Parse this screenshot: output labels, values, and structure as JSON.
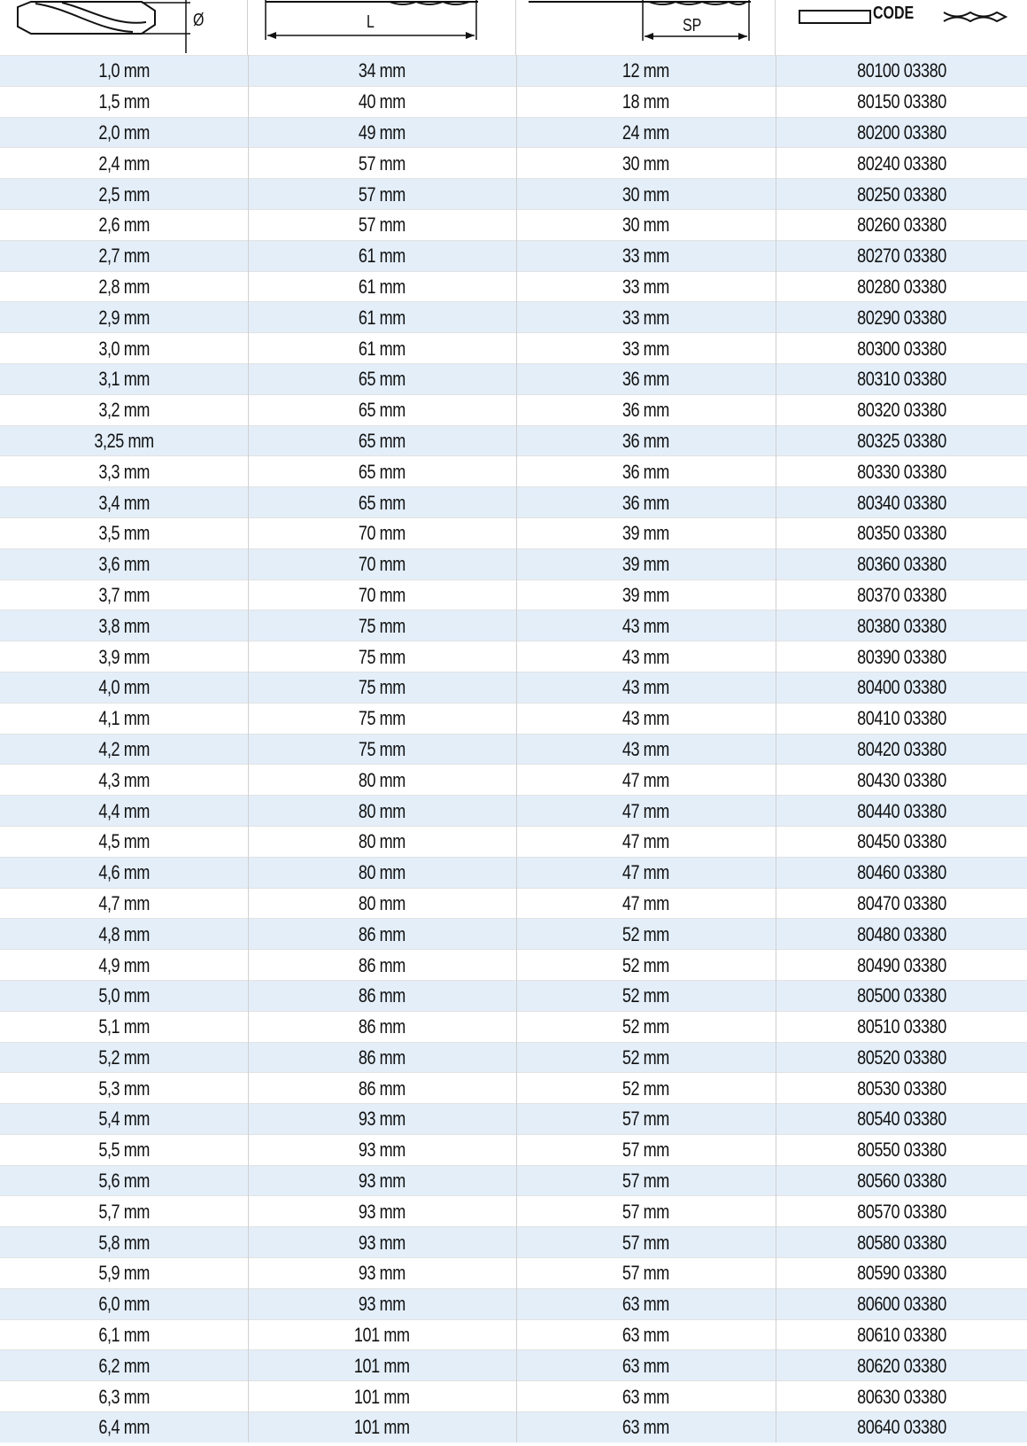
{
  "header": {
    "diameter_symbol": "Ø",
    "length_label": "L",
    "spiral_label": "SP",
    "code_label": "CODE"
  },
  "rows": [
    [
      "1,0 mm",
      "34 mm",
      "12 mm",
      "80100 03380"
    ],
    [
      "1,5 mm",
      "40 mm",
      "18 mm",
      "80150 03380"
    ],
    [
      "2,0 mm",
      "49 mm",
      "24 mm",
      "80200 03380"
    ],
    [
      "2,4 mm",
      "57 mm",
      "30 mm",
      "80240 03380"
    ],
    [
      "2,5 mm",
      "57 mm",
      "30 mm",
      "80250 03380"
    ],
    [
      "2,6 mm",
      "57 mm",
      "30 mm",
      "80260 03380"
    ],
    [
      "2,7 mm",
      "61 mm",
      "33 mm",
      "80270 03380"
    ],
    [
      "2,8 mm",
      "61 mm",
      "33 mm",
      "80280 03380"
    ],
    [
      "2,9 mm",
      "61 mm",
      "33 mm",
      "80290 03380"
    ],
    [
      "3,0 mm",
      "61 mm",
      "33 mm",
      "80300 03380"
    ],
    [
      "3,1 mm",
      "65 mm",
      "36 mm",
      "80310 03380"
    ],
    [
      "3,2 mm",
      "65 mm",
      "36 mm",
      "80320 03380"
    ],
    [
      "3,25 mm",
      "65 mm",
      "36 mm",
      "80325 03380"
    ],
    [
      "3,3 mm",
      "65 mm",
      "36 mm",
      "80330 03380"
    ],
    [
      "3,4 mm",
      "65 mm",
      "36 mm",
      "80340 03380"
    ],
    [
      "3,5 mm",
      "70 mm",
      "39 mm",
      "80350 03380"
    ],
    [
      "3,6 mm",
      "70 mm",
      "39 mm",
      "80360 03380"
    ],
    [
      "3,7 mm",
      "70 mm",
      "39 mm",
      "80370 03380"
    ],
    [
      "3,8 mm",
      "75 mm",
      "43 mm",
      "80380 03380"
    ],
    [
      "3,9 mm",
      "75 mm",
      "43 mm",
      "80390 03380"
    ],
    [
      "4,0 mm",
      "75 mm",
      "43 mm",
      "80400 03380"
    ],
    [
      "4,1 mm",
      "75 mm",
      "43 mm",
      "80410 03380"
    ],
    [
      "4,2 mm",
      "75 mm",
      "43 mm",
      "80420 03380"
    ],
    [
      "4,3 mm",
      "80 mm",
      "47 mm",
      "80430 03380"
    ],
    [
      "4,4 mm",
      "80 mm",
      "47 mm",
      "80440 03380"
    ],
    [
      "4,5 mm",
      "80 mm",
      "47 mm",
      "80450 03380"
    ],
    [
      "4,6 mm",
      "80 mm",
      "47 mm",
      "80460 03380"
    ],
    [
      "4,7 mm",
      "80 mm",
      "47 mm",
      "80470 03380"
    ],
    [
      "4,8 mm",
      "86 mm",
      "52 mm",
      "80480 03380"
    ],
    [
      "4,9 mm",
      "86 mm",
      "52 mm",
      "80490 03380"
    ],
    [
      "5,0 mm",
      "86 mm",
      "52 mm",
      "80500 03380"
    ],
    [
      "5,1 mm",
      "86 mm",
      "52 mm",
      "80510 03380"
    ],
    [
      "5,2 mm",
      "86 mm",
      "52 mm",
      "80520 03380"
    ],
    [
      "5,3 mm",
      "86 mm",
      "52 mm",
      "80530 03380"
    ],
    [
      "5,4 mm",
      "93 mm",
      "57 mm",
      "80540 03380"
    ],
    [
      "5,5 mm",
      "93 mm",
      "57 mm",
      "80550 03380"
    ],
    [
      "5,6 mm",
      "93 mm",
      "57 mm",
      "80560 03380"
    ],
    [
      "5,7 mm",
      "93 mm",
      "57 mm",
      "80570 03380"
    ],
    [
      "5,8 mm",
      "93 mm",
      "57 mm",
      "80580 03380"
    ],
    [
      "5,9 mm",
      "93 mm",
      "57 mm",
      "80590 03380"
    ],
    [
      "6,0 mm",
      "93 mm",
      "63 mm",
      "80600 03380"
    ],
    [
      "6,1 mm",
      "101 mm",
      "63 mm",
      "80610 03380"
    ],
    [
      "6,2 mm",
      "101 mm",
      "63 mm",
      "80620 03380"
    ],
    [
      "6,3 mm",
      "101 mm",
      "63 mm",
      "80630 03380"
    ],
    [
      "6,4 mm",
      "101 mm",
      "63 mm",
      "80640 03380"
    ]
  ]
}
